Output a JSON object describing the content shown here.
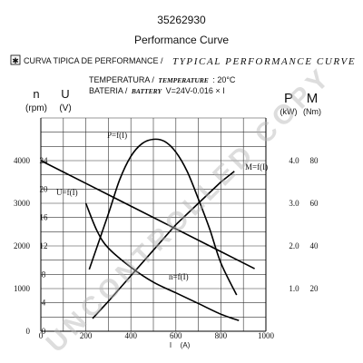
{
  "header": {
    "part_number": "35262930",
    "title": "Performance Curve"
  },
  "legend": {
    "symbol": "✱",
    "caption_es": "CURVA TIPICA DE PERFORMANCE /",
    "caption_en": "TYPICAL PERFORMANCE CURVE",
    "temp_es": "TEMPERATURA /",
    "temp_en": "TEMPERATURE",
    "temp_value": ": 20°C",
    "battery_es": "BATERIA /",
    "battery_en": "BATTERY",
    "battery_value": "V=24V-0.016 × I"
  },
  "axis_labels": {
    "n_symbol": "n",
    "n_unit": "(rpm)",
    "u_symbol": "U",
    "u_unit": "(V)",
    "p_symbol": "P",
    "p_unit": "(kW)",
    "m_symbol": "M",
    "m_unit": "(Nm)",
    "i_symbol": "I",
    "i_unit": "(A)"
  },
  "watermark": "UNCONTROLLED COPY",
  "chart_data": {
    "type": "line",
    "x_axis": {
      "label": "I (A)",
      "min": 0,
      "max": 1000,
      "ticks": [
        0,
        200,
        400,
        600,
        800,
        1000
      ],
      "tick_labels": [
        "0",
        "200",
        "400",
        "600",
        "800",
        "1000"
      ]
    },
    "axes": {
      "n": {
        "unit": "rpm",
        "min": 0,
        "max": 5000,
        "tick_labels": [
          "0",
          "1000",
          "2000",
          "3000",
          "4000"
        ],
        "tick_values": [
          0,
          1000,
          2000,
          3000,
          4000
        ]
      },
      "U": {
        "unit": "V",
        "min": 0,
        "max": 30,
        "tick_labels": [
          "0",
          "4",
          "8",
          "12",
          "16",
          "20",
          "24"
        ],
        "tick_values": [
          0,
          4,
          8,
          12,
          16,
          20,
          24
        ]
      },
      "P": {
        "unit": "kW",
        "min": 0,
        "max": 5,
        "tick_labels": [
          "1.0",
          "2.0",
          "3.0",
          "4.0"
        ],
        "tick_values": [
          1,
          2,
          3,
          4
        ]
      },
      "M": {
        "unit": "Nm",
        "min": 0,
        "max": 100,
        "tick_labels": [
          "20",
          "40",
          "60",
          "80"
        ],
        "tick_values": [
          20,
          40,
          60,
          80
        ]
      }
    },
    "grid": true,
    "series": [
      {
        "name": "U=f(I)",
        "axis": "U",
        "x": [
          0,
          200,
          400,
          600,
          800,
          950
        ],
        "y": [
          24,
          20.8,
          17.6,
          14.4,
          11.2,
          8.8
        ]
      },
      {
        "name": "n=f(I)",
        "axis": "n",
        "x": [
          200,
          250,
          300,
          400,
          500,
          600,
          700,
          800,
          880
        ],
        "y": [
          3000,
          2350,
          1950,
          1500,
          1150,
          900,
          650,
          400,
          250
        ]
      },
      {
        "name": "P=f(I)",
        "axis": "P",
        "x": [
          215,
          300,
          350,
          400,
          450,
          500,
          550,
          600,
          650,
          700,
          750,
          800,
          870
        ],
        "y": [
          1.45,
          2.75,
          3.55,
          4.1,
          4.4,
          4.5,
          4.45,
          4.2,
          3.75,
          3.1,
          2.4,
          1.6,
          0.85
        ]
      },
      {
        "name": "M=f(I)",
        "axis": "M",
        "x": [
          230,
          300,
          400,
          500,
          600,
          700,
          800,
          860
        ],
        "y": [
          6,
          14,
          26,
          38,
          50,
          60,
          70,
          75
        ]
      }
    ]
  }
}
